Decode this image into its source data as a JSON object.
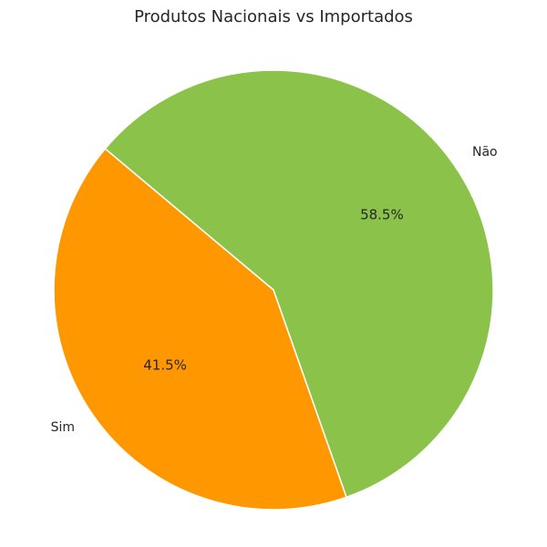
{
  "chart_data": {
    "type": "pie",
    "title": "Produtos Nacionais vs Importados",
    "slices": [
      {
        "label": "Sim",
        "value": 41.5,
        "pct_label": "41.5%",
        "color": "#ff9800"
      },
      {
        "label": "Não",
        "value": 58.5,
        "pct_label": "58.5%",
        "color": "#8bc34a"
      }
    ],
    "start_angle_deg": 140,
    "direction": "counterclockwise",
    "slice_edge_color": "#ffffff"
  }
}
